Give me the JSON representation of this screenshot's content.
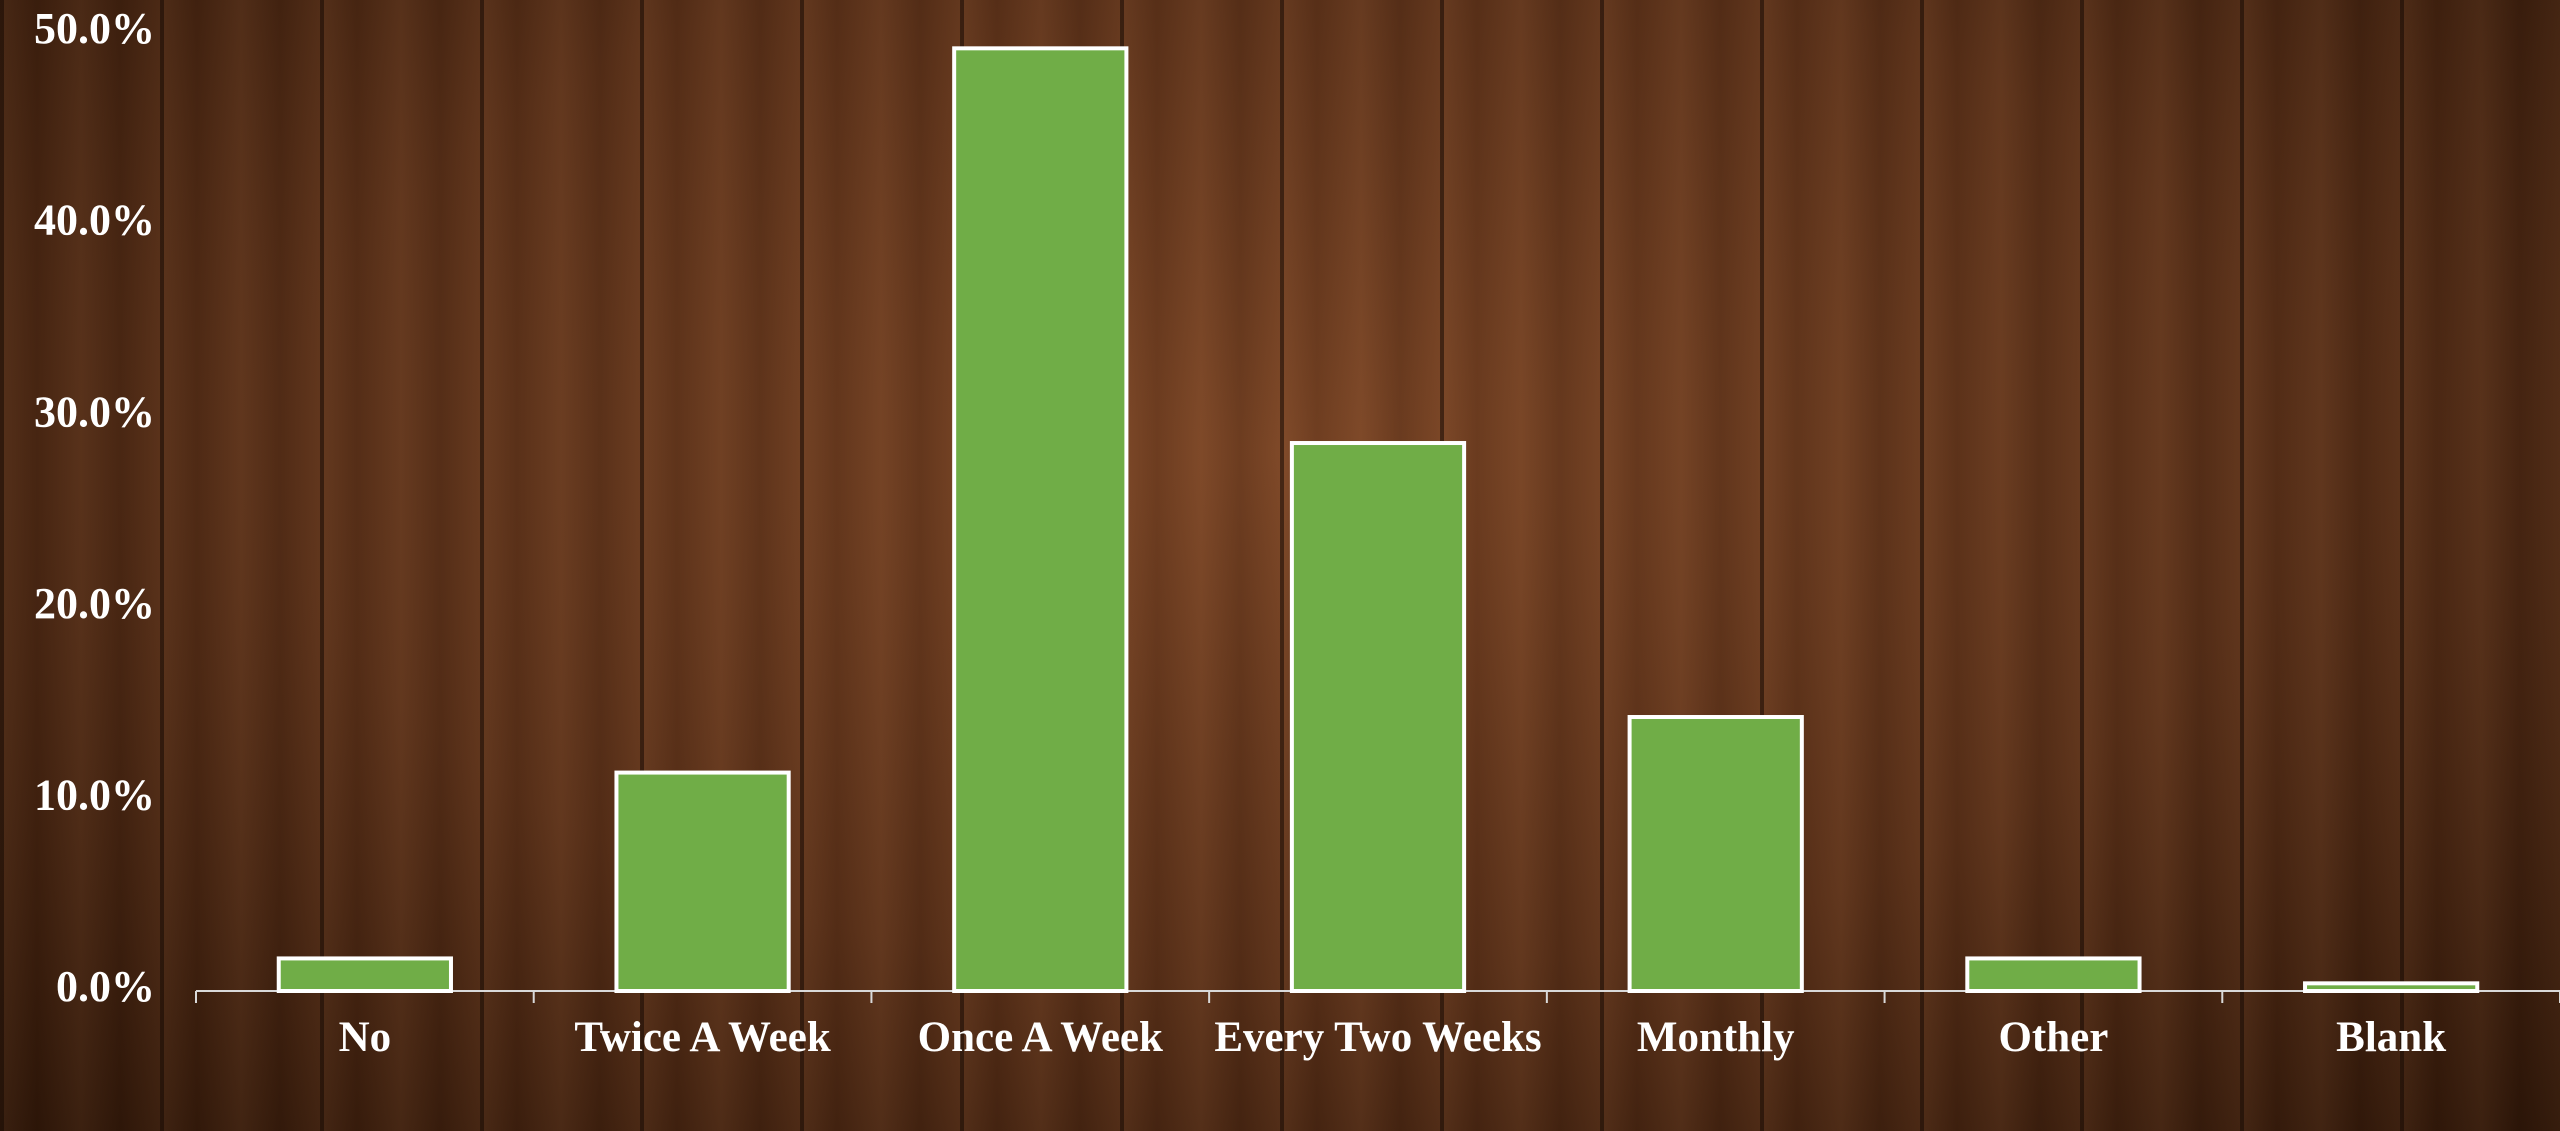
{
  "chart_data": {
    "type": "bar",
    "categories": [
      "No",
      "Twice A Week",
      "Once A Week",
      "Every Two Weeks",
      "Monthly",
      "Other",
      "Blank"
    ],
    "values": [
      1.7,
      11.4,
      49.2,
      28.6,
      14.3,
      1.7,
      0.4
    ],
    "color": "#70ad47",
    "ylim": [
      0,
      50
    ],
    "yticks": [
      {
        "value": 0,
        "label": "0.0%"
      },
      {
        "value": 10,
        "label": "10.0%"
      },
      {
        "value": 20,
        "label": "20.0%"
      },
      {
        "value": 30,
        "label": "30.0%"
      },
      {
        "value": 40,
        "label": "40.0%"
      },
      {
        "value": 50,
        "label": "50.0%"
      }
    ],
    "grid": false
  }
}
